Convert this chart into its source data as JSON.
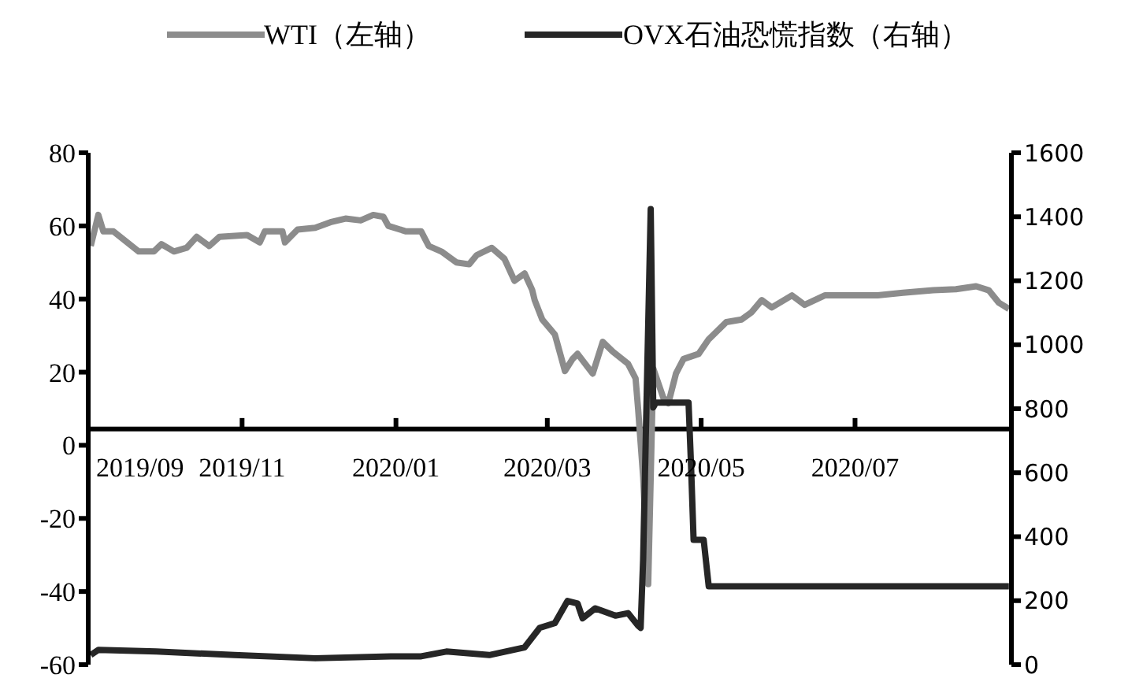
{
  "chart_data": {
    "type": "line",
    "legend": "top",
    "line_style": "solid",
    "marker": "none",
    "xlim": [
      "2019-09-01",
      "2020-09-01"
    ],
    "xticks": [
      {
        "value": "2019-09-01",
        "label": "2019/09"
      },
      {
        "value": "2019-11-01",
        "label": "2019/11"
      },
      {
        "value": "2020-01-01",
        "label": "2020/01"
      },
      {
        "value": "2020-03-01",
        "label": "2020/03"
      },
      {
        "value": "2020-05-01",
        "label": "2020/05"
      },
      {
        "value": "2020-07-01",
        "label": "2020/07"
      }
    ],
    "ylim": [
      -60,
      80
    ],
    "yticks": [
      -60,
      -40,
      -20,
      0,
      20,
      40,
      60,
      80
    ],
    "y2lim": [
      0,
      1600
    ],
    "y2ticks": [
      0,
      200,
      400,
      600,
      800,
      1000,
      1200,
      1400,
      1600
    ],
    "series": [
      {
        "name": "WTI（左轴）",
        "color": "#8c8c8c",
        "x": [
          "2019-09-02",
          "2019-09-05",
          "2019-09-07",
          "2019-09-11",
          "2019-09-21",
          "2019-09-27",
          "2019-09-30",
          "2019-10-05",
          "2019-10-10",
          "2019-10-14",
          "2019-10-19",
          "2019-10-23",
          "2019-11-03",
          "2019-11-08",
          "2019-11-10",
          "2019-11-17",
          "2019-11-18",
          "2019-11-23",
          "2019-11-30",
          "2019-12-06",
          "2019-12-12",
          "2019-12-18",
          "2019-12-23",
          "2019-12-27",
          "2019-12-29",
          "2020-01-05",
          "2020-01-11",
          "2020-01-14",
          "2020-01-19",
          "2020-01-25",
          "2020-01-30",
          "2020-02-02",
          "2020-02-08",
          "2020-02-13",
          "2020-02-17",
          "2020-02-21",
          "2020-02-24",
          "2020-02-25",
          "2020-02-28",
          "2020-03-04",
          "2020-03-08",
          "2020-03-11",
          "2020-03-13",
          "2020-03-19",
          "2020-03-23",
          "2020-03-27",
          "2020-04-02",
          "2020-04-05",
          "2020-04-06",
          "2020-04-08",
          "2020-04-10",
          "2020-04-11",
          "2020-04-12",
          "2020-04-16",
          "2020-04-18",
          "2020-04-21",
          "2020-04-24",
          "2020-04-30",
          "2020-05-04",
          "2020-05-11",
          "2020-05-17",
          "2020-05-21",
          "2020-05-25",
          "2020-05-29",
          "2020-06-06",
          "2020-06-11",
          "2020-06-19",
          "2020-06-29",
          "2020-07-10",
          "2020-07-20",
          "2020-08-01",
          "2020-08-10",
          "2020-08-18",
          "2020-08-23",
          "2020-08-27",
          "2020-08-31"
        ],
        "values": [
          54.5,
          63,
          58.5,
          58.5,
          53,
          53,
          55,
          53,
          54,
          57,
          54.5,
          57,
          57.5,
          55.5,
          58.5,
          58.5,
          55.5,
          59,
          59.5,
          61,
          62,
          61.5,
          63,
          62.5,
          60,
          58.5,
          58.5,
          54.5,
          53,
          50,
          49.5,
          52,
          54,
          51,
          45,
          47,
          42.5,
          39.7,
          34.4,
          30.3,
          20.3,
          23.6,
          25,
          19.6,
          28.3,
          25.6,
          22.3,
          18.3,
          10,
          -8.6,
          -38,
          -8.6,
          21,
          13,
          11.5,
          19.6,
          23.6,
          25,
          29,
          33.7,
          34.4,
          36.4,
          39.7,
          37.7,
          41,
          38.4,
          41,
          41,
          41,
          41.7,
          42.4,
          42.7,
          43.5,
          42.4,
          39,
          37.3
        ]
      },
      {
        "name": "OVX石油恐慌指数（右轴）",
        "color": "#262626",
        "axis": "y2",
        "x": [
          "2019-09-02",
          "2019-09-05",
          "2019-09-28",
          "2019-10-29",
          "2019-11-30",
          "2019-12-30",
          "2020-01-11",
          "2020-01-21",
          "2020-02-07",
          "2020-02-21",
          "2020-02-27",
          "2020-03-04",
          "2020-03-09",
          "2020-03-13",
          "2020-03-15",
          "2020-03-20",
          "2020-03-28",
          "2020-04-02",
          "2020-04-06",
          "2020-04-07",
          "2020-04-08",
          "2020-04-11",
          "2020-04-12",
          "2020-04-13",
          "2020-04-26",
          "2020-04-27",
          "2020-04-28",
          "2020-05-02",
          "2020-05-04",
          "2020-08-31"
        ],
        "values": [
          30,
          46,
          41,
          30,
          20,
          26,
          26,
          41,
          30,
          54,
          115,
          130,
          199,
          191,
          145,
          176,
          153,
          161,
          122,
          115,
          329,
          1424,
          804,
          819,
          819,
          620,
          390,
          390,
          245,
          245
        ]
      }
    ]
  }
}
